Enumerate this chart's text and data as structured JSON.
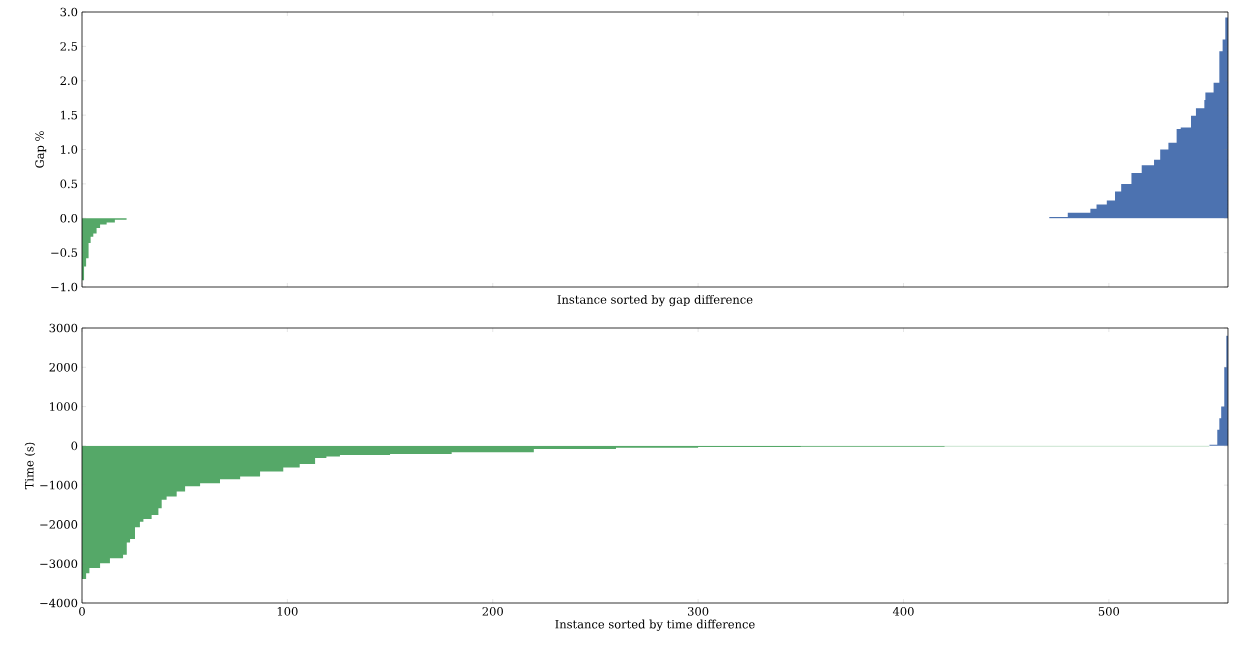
{
  "chart_data": [
    {
      "type": "area",
      "ylabel": "Gap %",
      "xlabel": "Instance sorted by gap difference",
      "xlim": [
        0,
        558
      ],
      "ylim": [
        -1.0,
        3.0
      ],
      "xticks": [
        0,
        100,
        200,
        300,
        400,
        500
      ],
      "yticks": [
        {
          "value": -1,
          "label": "−1.0"
        },
        {
          "value": -0.5,
          "label": "−0.5"
        },
        {
          "value": 0,
          "label": "0.0"
        },
        {
          "value": 0.5,
          "label": "0.5"
        },
        {
          "value": 1,
          "label": "1.0"
        },
        {
          "value": 1.5,
          "label": "1.5"
        },
        {
          "value": 2,
          "label": "2.0"
        },
        {
          "value": 2.5,
          "label": "2.5"
        },
        {
          "value": 3,
          "label": "3.0"
        }
      ],
      "tick_labels": "y",
      "series": [
        {
          "color": "#55a868",
          "x": [
            0,
            1,
            2,
            3.2,
            4.2,
            5.5,
            7.1,
            8.8,
            12,
            16,
            21.7
          ],
          "values": [
            -0.9,
            -0.7,
            -0.58,
            -0.36,
            -0.27,
            -0.22,
            -0.14,
            -0.09,
            -0.06,
            -0.02,
            -0.02
          ]
        },
        {
          "color": "#4c72b0",
          "x": [
            471,
            480,
            491,
            494,
            499,
            503,
            506,
            511,
            516,
            522,
            525,
            529,
            533,
            535,
            540,
            542.4,
            546.5,
            547,
            551,
            553.8,
            555.4,
            556.7,
            558
          ],
          "values": [
            0.02,
            0.08,
            0.14,
            0.2,
            0.26,
            0.39,
            0.5,
            0.66,
            0.77,
            0.85,
            1.0,
            1.1,
            1.3,
            1.32,
            1.49,
            1.6,
            1.72,
            1.83,
            1.97,
            2.43,
            2.6,
            2.92,
            2.92
          ]
        }
      ]
    },
    {
      "type": "area",
      "ylabel": "Time (s)",
      "xlabel": "Instance sorted by time difference",
      "xlim": [
        0,
        558
      ],
      "ylim": [
        -4000,
        3000
      ],
      "xticks": [
        0,
        100,
        200,
        300,
        400,
        500
      ],
      "yticks": [
        {
          "value": -4000,
          "label": "−4000"
        },
        {
          "value": -3000,
          "label": "−3000"
        },
        {
          "value": -2000,
          "label": "−2000"
        },
        {
          "value": -1000,
          "label": "−1000"
        },
        0,
        1000,
        2000,
        3000
      ],
      "series": [
        {
          "color": "#55a868",
          "x": [
            0,
            2,
            3.6,
            8.8,
            13.6,
            20,
            21.8,
            23.4,
            25.8,
            28.2,
            29.9,
            33.9,
            37.2,
            38.8,
            41.2,
            46.1,
            50.2,
            57.5,
            67.2,
            77,
            86.7,
            98,
            106,
            113.5,
            119,
            125.6,
            150,
            180,
            220,
            260,
            300,
            350,
            420,
            549
          ],
          "values": [
            -3390,
            -3240,
            -3110,
            -2990,
            -2860,
            -2770,
            -2460,
            -2370,
            -2070,
            -1930,
            -1860,
            -1760,
            -1590,
            -1370,
            -1290,
            -1160,
            -1030,
            -950,
            -850,
            -780,
            -650,
            -550,
            -460,
            -310,
            -270,
            -230,
            -210,
            -160,
            -80,
            -50,
            -30,
            -20,
            -10,
            -10
          ]
        },
        {
          "color": "#4c72b0",
          "x": [
            549,
            552.8,
            553.8,
            554.7,
            556.2,
            557.2,
            558
          ],
          "values": [
            30,
            410,
            700,
            1000,
            2000,
            2800,
            2800
          ]
        }
      ]
    }
  ]
}
